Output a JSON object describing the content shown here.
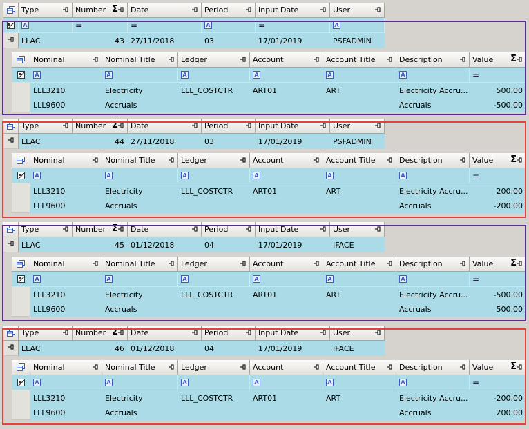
{
  "headers": {
    "master": [
      "Type",
      "Number",
      "Date",
      "Period",
      "Input Date",
      "User"
    ],
    "detail": [
      "Nominal",
      "Nominal Title",
      "Ledger",
      "Account",
      "Account Title",
      "Description",
      "Value"
    ]
  },
  "colors": {
    "purple": "#5b2d8e",
    "red": "#e8403a",
    "row": "#aadbe6"
  },
  "groups": [
    {
      "frame": "purple",
      "master": {
        "type": "LLAC",
        "number": "43",
        "date": "27/11/2018",
        "period": "03",
        "input_date": "17/01/2019",
        "user": "PSFADMIN"
      },
      "lines": [
        {
          "nominal": "LLL3210",
          "nominal_title": "Electricity",
          "ledger": "LLL_COSTCTR",
          "account": "ART01",
          "account_title": "ART",
          "description": "Electricity Accru...",
          "value": "500.00"
        },
        {
          "nominal": "LLL9600",
          "nominal_title": "Accruals",
          "ledger": "",
          "account": "",
          "account_title": "",
          "description": "Accruals",
          "value": "-500.00"
        }
      ]
    },
    {
      "frame": "red",
      "master": {
        "type": "LLAC",
        "number": "44",
        "date": "27/11/2018",
        "period": "03",
        "input_date": "17/01/2019",
        "user": "PSFADMIN"
      },
      "lines": [
        {
          "nominal": "LLL3210",
          "nominal_title": "Electricity",
          "ledger": "LLL_COSTCTR",
          "account": "ART01",
          "account_title": "ART",
          "description": "Electricity Accru...",
          "value": "200.00"
        },
        {
          "nominal": "LLL9600",
          "nominal_title": "Accruals",
          "ledger": "",
          "account": "",
          "account_title": "",
          "description": "Accruals",
          "value": "-200.00"
        }
      ]
    },
    {
      "frame": "purple",
      "master": {
        "type": "LLAC",
        "number": "45",
        "date": "01/12/2018",
        "period": "04",
        "input_date": "17/01/2019",
        "user": "IFACE"
      },
      "lines": [
        {
          "nominal": "LLL3210",
          "nominal_title": "Electricity",
          "ledger": "LLL_COSTCTR",
          "account": "ART01",
          "account_title": "ART",
          "description": "Electricity Accru...",
          "value": "-500.00"
        },
        {
          "nominal": "LLL9600",
          "nominal_title": "Accruals",
          "ledger": "",
          "account": "",
          "account_title": "",
          "description": "Accruals",
          "value": "500.00"
        }
      ]
    },
    {
      "frame": "red",
      "master": {
        "type": "LLAC",
        "number": "46",
        "date": "01/12/2018",
        "period": "04",
        "input_date": "17/01/2019",
        "user": "IFACE"
      },
      "lines": [
        {
          "nominal": "LLL3210",
          "nominal_title": "Electricity",
          "ledger": "LLL_COSTCTR",
          "account": "ART01",
          "account_title": "ART",
          "description": "Electricity Accru...",
          "value": "-200.00"
        },
        {
          "nominal": "LLL9600",
          "nominal_title": "Accruals",
          "ledger": "",
          "account": "",
          "account_title": "",
          "description": "Accruals",
          "value": "200.00"
        }
      ]
    }
  ]
}
